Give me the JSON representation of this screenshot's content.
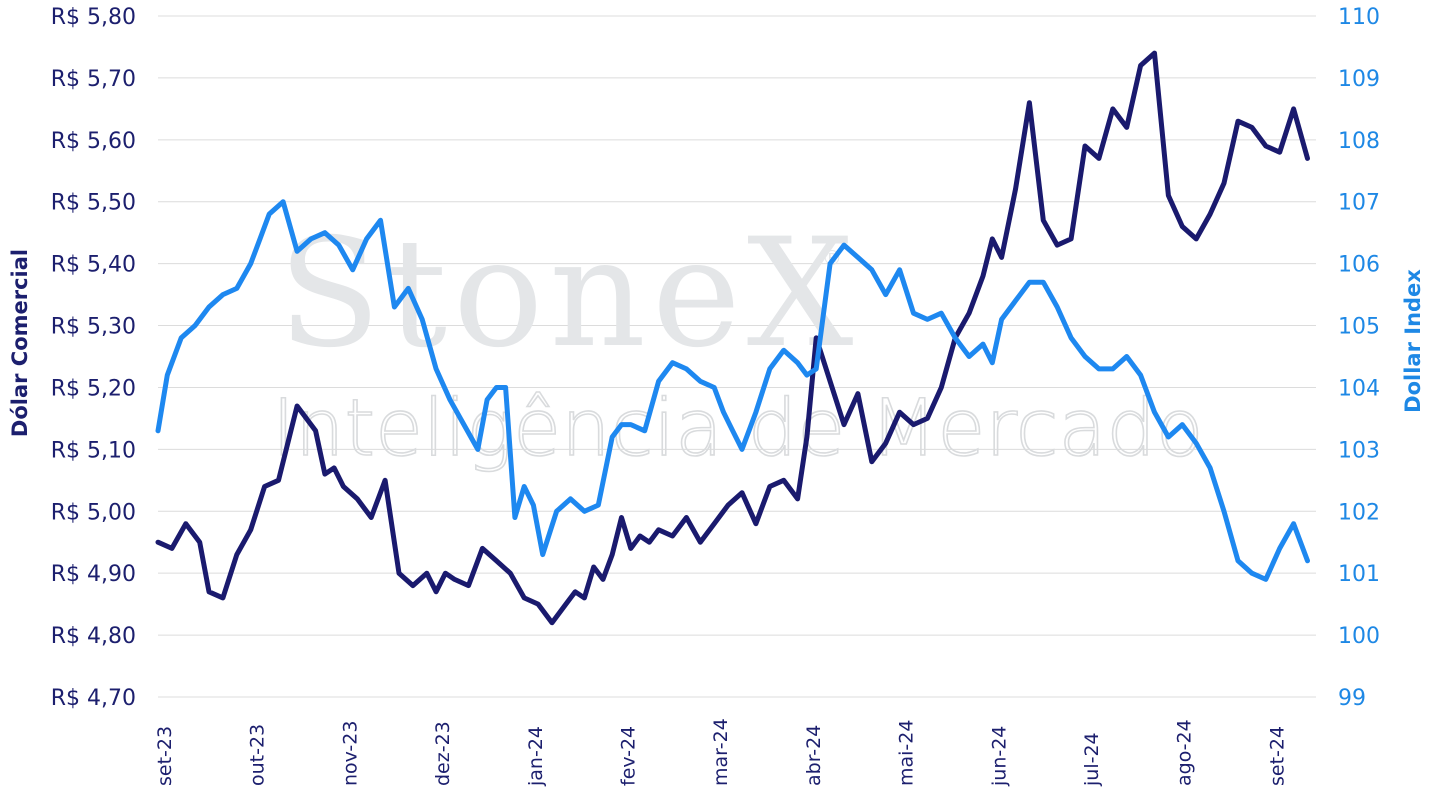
{
  "watermark": {
    "brand": "StoneX",
    "registered": "®",
    "subtitle": "Inteligência de Mercado"
  },
  "colors": {
    "usdbrl": "#1a1a6e",
    "dxy": "#1e88f0",
    "axis_left": "#1c1f6e",
    "axis_right": "#1e88e5"
  },
  "chart_data": {
    "type": "line",
    "ylabel_left": "Dólar Comercial",
    "ylabel_right": "Dollar Index",
    "ylim_left": [
      4.7,
      5.8
    ],
    "ylim_right": [
      99,
      110
    ],
    "yticks_left": [
      "R$ 4,70",
      "R$ 4,80",
      "R$ 4,90",
      "R$ 5,00",
      "R$ 5,10",
      "R$ 5,20",
      "R$ 5,30",
      "R$ 5,40",
      "R$ 5,50",
      "R$ 5,60",
      "R$ 5,70",
      "R$ 5,80"
    ],
    "yticks_right": [
      "99",
      "100",
      "101",
      "102",
      "103",
      "104",
      "105",
      "106",
      "107",
      "108",
      "109",
      "110"
    ],
    "x_categories": [
      "set-23",
      "out-23",
      "nov-23",
      "dez-23",
      "jan-24",
      "fev-24",
      "mar-24",
      "abr-24",
      "mai-24",
      "jun-24",
      "jul-24",
      "ago-24",
      "set-24"
    ],
    "grid": "horizontal",
    "series": [
      {
        "name": "Dólar Comercial",
        "axis": "left",
        "x": [
          0,
          0.15,
          0.3,
          0.45,
          0.55,
          0.7,
          0.85,
          1,
          1.15,
          1.3,
          1.5,
          1.7,
          1.8,
          1.9,
          2,
          2.15,
          2.3,
          2.45,
          2.6,
          2.75,
          2.9,
          3,
          3.1,
          3.2,
          3.35,
          3.5,
          3.65,
          3.8,
          3.95,
          4.1,
          4.25,
          4.4,
          4.5,
          4.6,
          4.7,
          4.8,
          4.9,
          5,
          5.1,
          5.2,
          5.3,
          5.4,
          5.55,
          5.7,
          5.85,
          6,
          6.15,
          6.3,
          6.45,
          6.6,
          6.75,
          6.9,
          7,
          7.1,
          7.25,
          7.4,
          7.55,
          7.7,
          7.85,
          8,
          8.15,
          8.3,
          8.45,
          8.6,
          8.75,
          8.9,
          9,
          9.1,
          9.25,
          9.4,
          9.55,
          9.7,
          9.85,
          10,
          10.15,
          10.3,
          10.45,
          10.6,
          10.75,
          10.9,
          11.05,
          11.2,
          11.35,
          11.5,
          11.65,
          11.8,
          11.95,
          12.1,
          12.25,
          12.4
        ],
        "values": [
          4.95,
          4.94,
          4.98,
          4.95,
          4.87,
          4.86,
          4.93,
          4.97,
          5.04,
          5.05,
          5.17,
          5.13,
          5.06,
          5.07,
          5.04,
          5.02,
          4.99,
          5.05,
          4.9,
          4.88,
          4.9,
          4.87,
          4.9,
          4.89,
          4.88,
          4.94,
          4.92,
          4.9,
          4.86,
          4.85,
          4.82,
          4.85,
          4.87,
          4.86,
          4.91,
          4.89,
          4.93,
          4.99,
          4.94,
          4.96,
          4.95,
          4.97,
          4.96,
          4.99,
          4.95,
          4.98,
          5.01,
          5.03,
          4.98,
          5.04,
          5.05,
          5.02,
          5.12,
          5.28,
          5.21,
          5.14,
          5.19,
          5.08,
          5.11,
          5.16,
          5.14,
          5.15,
          5.2,
          5.28,
          5.32,
          5.38,
          5.44,
          5.41,
          5.52,
          5.66,
          5.47,
          5.43,
          5.44,
          5.59,
          5.57,
          5.65,
          5.62,
          5.72,
          5.74,
          5.51,
          5.46,
          5.44,
          5.48,
          5.53,
          5.63,
          5.62,
          5.59,
          5.58,
          5.65,
          5.57
        ],
        "color": "#1a1a6e"
      },
      {
        "name": "Dollar Index",
        "axis": "right",
        "x": [
          0,
          0.1,
          0.25,
          0.4,
          0.55,
          0.7,
          0.85,
          1,
          1.1,
          1.2,
          1.35,
          1.5,
          1.65,
          1.8,
          1.95,
          2.1,
          2.25,
          2.4,
          2.55,
          2.7,
          2.85,
          3,
          3.15,
          3.3,
          3.45,
          3.55,
          3.65,
          3.75,
          3.85,
          3.95,
          4.05,
          4.15,
          4.3,
          4.45,
          4.6,
          4.75,
          4.9,
          5,
          5.1,
          5.25,
          5.4,
          5.55,
          5.7,
          5.85,
          6,
          6.1,
          6.2,
          6.3,
          6.45,
          6.6,
          6.75,
          6.9,
          7,
          7.1,
          7.25,
          7.4,
          7.55,
          7.7,
          7.85,
          8,
          8.15,
          8.3,
          8.45,
          8.6,
          8.75,
          8.9,
          9,
          9.1,
          9.25,
          9.4,
          9.55,
          9.7,
          9.85,
          10,
          10.15,
          10.3,
          10.45,
          10.6,
          10.75,
          10.9,
          11.05,
          11.2,
          11.35,
          11.5,
          11.65,
          11.8,
          11.95,
          12.1,
          12.25,
          12.4
        ],
        "values": [
          103.3,
          104.2,
          104.8,
          105.0,
          105.3,
          105.5,
          105.6,
          106.0,
          106.4,
          106.8,
          107.0,
          106.2,
          106.4,
          106.5,
          106.3,
          105.9,
          106.4,
          106.7,
          105.3,
          105.6,
          105.1,
          104.3,
          103.8,
          103.4,
          103.0,
          103.8,
          104.0,
          104.0,
          101.9,
          102.4,
          102.1,
          101.3,
          102.0,
          102.2,
          102.0,
          102.1,
          103.2,
          103.4,
          103.4,
          103.3,
          104.1,
          104.4,
          104.3,
          104.1,
          104.0,
          103.6,
          103.3,
          103.0,
          103.6,
          104.3,
          104.6,
          104.4,
          104.2,
          104.3,
          106.0,
          106.3,
          106.1,
          105.9,
          105.5,
          105.9,
          105.2,
          105.1,
          105.2,
          104.8,
          104.5,
          104.7,
          104.4,
          105.1,
          105.4,
          105.7,
          105.7,
          105.3,
          104.8,
          104.5,
          104.3,
          104.3,
          104.5,
          104.2,
          103.6,
          103.2,
          103.4,
          103.1,
          102.7,
          102.0,
          101.2,
          101.0,
          100.9,
          101.4,
          101.8,
          101.2
        ],
        "color": "#1e88f0"
      }
    ]
  }
}
